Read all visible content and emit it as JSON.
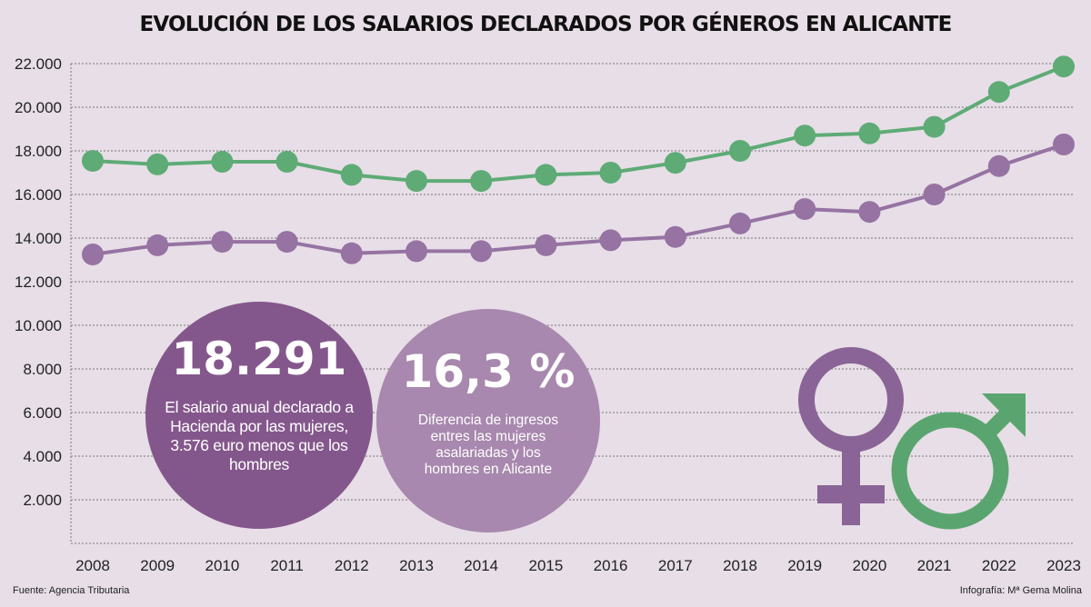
{
  "chart_data": {
    "type": "line",
    "title": "EVOLUCIÓN DE LOS SALARIOS DECLARADOS POR GÉNEROS EN ALICANTE",
    "categories": [
      "2008",
      "2009",
      "2010",
      "2011",
      "2012",
      "2013",
      "2014",
      "2015",
      "2016",
      "2017",
      "2018",
      "2019",
      "2020",
      "2021",
      "2022",
      "2023"
    ],
    "yticks": [
      "2.000",
      "4.000",
      "6.000",
      "8.000",
      "10.000",
      "12.000",
      "14.000",
      "16.000",
      "18.000",
      "20.000",
      "22.000"
    ],
    "ytick_values": [
      2000,
      4000,
      6000,
      8000,
      10000,
      12000,
      14000,
      16000,
      18000,
      20000,
      22000
    ],
    "ylim": [
      0,
      22000
    ],
    "grid": "horizontal dashed",
    "series": [
      {
        "gender": "men",
        "color": "#5eab76",
        "values": [
          17540,
          17380,
          17500,
          17500,
          16900,
          16620,
          16620,
          16900,
          17000,
          17450,
          18000,
          18700,
          18800,
          19100,
          20700,
          21867
        ]
      },
      {
        "gender": "women",
        "color": "#9673a3",
        "values": [
          13250,
          13670,
          13830,
          13830,
          13300,
          13400,
          13400,
          13670,
          13900,
          14050,
          14670,
          15330,
          15200,
          16000,
          17300,
          18291
        ]
      }
    ]
  },
  "callouts": [
    {
      "value": "18.291",
      "text": "El salario anual declarado a Hacienda por las mujeres, 3.576 euro menos que los hombres",
      "color": "#84578c"
    },
    {
      "value": "16,3 %",
      "text": "Diferencia de ingresos entres las mujeres asalariadas y los hombres en Alicante",
      "color": "#a888ae"
    }
  ],
  "icons": {
    "female": "female-symbol-icon",
    "male": "male-symbol-icon",
    "female_color": "#8a6496",
    "male_color": "#5aa56f"
  },
  "footer": {
    "source": "Fuente: Agencia Tributaria",
    "credit": "Infografía: Mª Gema Molina"
  }
}
